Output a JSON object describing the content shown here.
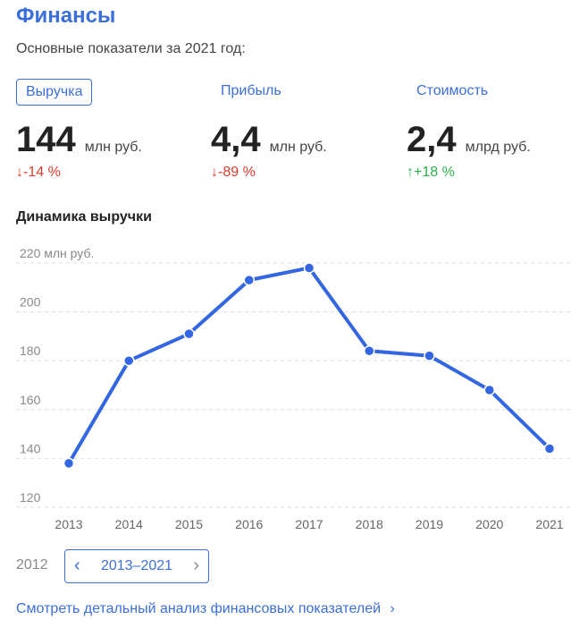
{
  "header": {
    "title": "Финансы",
    "subtitle": "Основные показатели за 2021 год:"
  },
  "tabs": [
    "Выручка",
    "Прибыль",
    "Стоимость"
  ],
  "metrics": [
    {
      "value": "144",
      "unit": "млн руб.",
      "delta": "-14 %",
      "arrow": "↓",
      "direction": "down"
    },
    {
      "value": "4,4",
      "unit": "млн руб.",
      "delta": "-89 %",
      "arrow": "↓",
      "direction": "down"
    },
    {
      "value": "2,4",
      "unit": "млрд руб.",
      "delta": "+18 %",
      "arrow": "↑",
      "direction": "up"
    }
  ],
  "colors": {
    "accent": "#3b6fd9",
    "down": "#e0392b",
    "up": "#2bb24a",
    "line": "#3366e0"
  },
  "chart_data": {
    "type": "line",
    "title": "Динамика выручки",
    "x": [
      "2013",
      "2014",
      "2015",
      "2016",
      "2017",
      "2018",
      "2019",
      "2020",
      "2021"
    ],
    "series": [
      {
        "values": [
          138,
          180,
          191,
          213,
          218,
          184,
          182,
          168,
          144
        ]
      }
    ],
    "ylim": [
      120,
      220
    ],
    "yticks": [
      120,
      140,
      160,
      180,
      200,
      220
    ],
    "ytick_labels": [
      "120",
      "140",
      "160",
      "180",
      "200",
      "220 млн руб."
    ],
    "grid": true
  },
  "pager": {
    "prev_year": "2012",
    "range": "2013–2021",
    "left_icon": "chevron-left-icon",
    "right_icon": "chevron-right-icon"
  },
  "footer": {
    "link": "Смотреть детальный анализ финансовых показателей"
  }
}
